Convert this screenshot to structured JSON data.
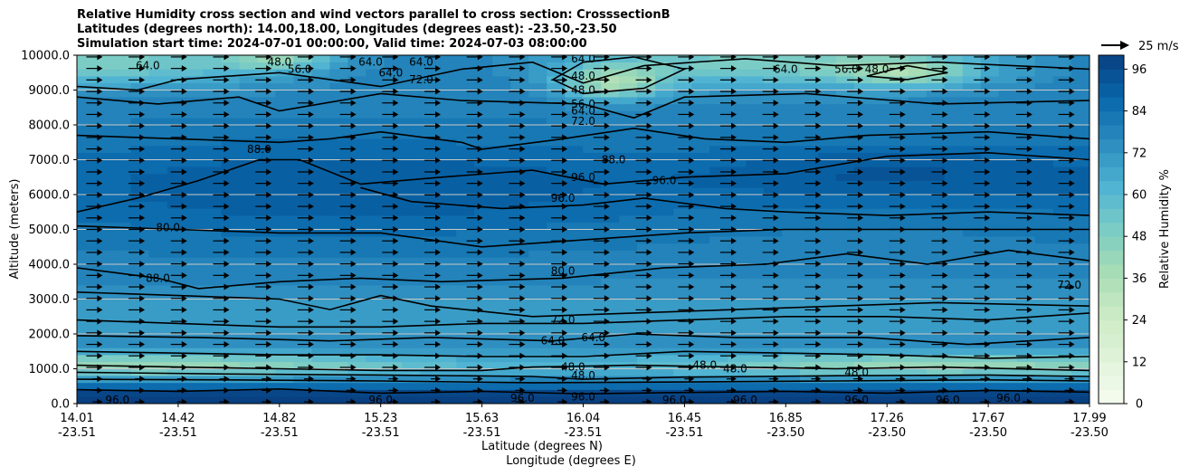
{
  "title_lines": [
    "Relative Humidity cross section and wind vectors parallel to cross section: CrosssectionB",
    "Latitudes (degrees north): 14.00,18.00, Longitudes (degrees east): -23.50,-23.50",
    "Simulation start time: 2024-07-01 00:00:00, Valid time: 2024-07-03 08:00:00"
  ],
  "chart_data": {
    "type": "heatmap",
    "description_free": true,
    "ylabel": "Altitude (meters)",
    "xlabel_lat": "Latitude (degrees N)",
    "xlabel_lon": "Longitude (degrees E)",
    "ylim": [
      0,
      10000
    ],
    "yticks": [
      "0.0",
      "1000.0",
      "2000.0",
      "3000.0",
      "4000.0",
      "5000.0",
      "6000.0",
      "7000.0",
      "8000.0",
      "9000.0",
      "10000.0"
    ],
    "xticks": [
      {
        "lat": "14.01",
        "lon": "-23.51"
      },
      {
        "lat": "14.42",
        "lon": "-23.51"
      },
      {
        "lat": "14.82",
        "lon": "-23.51"
      },
      {
        "lat": "15.23",
        "lon": "-23.51"
      },
      {
        "lat": "15.63",
        "lon": "-23.51"
      },
      {
        "lat": "16.04",
        "lon": "-23.51"
      },
      {
        "lat": "16.45",
        "lon": "-23.51"
      },
      {
        "lat": "16.85",
        "lon": "-23.50"
      },
      {
        "lat": "17.26",
        "lon": "-23.50"
      },
      {
        "lat": "17.67",
        "lon": "-23.50"
      },
      {
        "lat": "17.99",
        "lon": "-23.50"
      }
    ],
    "colorbar": {
      "label": "Relative Humidity %",
      "ticks": [
        "0",
        "12",
        "24",
        "36",
        "48",
        "60",
        "72",
        "84",
        "96"
      ],
      "levels": [
        0,
        4,
        8,
        12,
        16,
        20,
        24,
        28,
        32,
        36,
        40,
        44,
        48,
        52,
        56,
        60,
        64,
        68,
        72,
        76,
        80,
        84,
        88,
        92,
        96,
        100
      ],
      "colormap": "GnBu"
    },
    "wind_key": "25 m/s",
    "contour_labels": [
      {
        "text": "96.0",
        "x": 0.04,
        "y": 100
      },
      {
        "text": "80.0",
        "x": 0.09,
        "y": 5050
      },
      {
        "text": "88.0",
        "x": 0.08,
        "y": 3600
      },
      {
        "text": "88.0",
        "x": 0.18,
        "y": 7300
      },
      {
        "text": "64.0",
        "x": 0.07,
        "y": 9700
      },
      {
        "text": "48.0",
        "x": 0.2,
        "y": 9800
      },
      {
        "text": "56.0",
        "x": 0.22,
        "y": 9600
      },
      {
        "text": "64.0",
        "x": 0.29,
        "y": 9800
      },
      {
        "text": "64.0",
        "x": 0.31,
        "y": 9500
      },
      {
        "text": "64.0",
        "x": 0.34,
        "y": 9800
      },
      {
        "text": "72.0",
        "x": 0.34,
        "y": 9300
      },
      {
        "text": "96.0",
        "x": 0.3,
        "y": 100
      },
      {
        "text": "80.0",
        "x": 0.48,
        "y": 3800
      },
      {
        "text": "72.0",
        "x": 0.48,
        "y": 2400
      },
      {
        "text": "64.0",
        "x": 0.47,
        "y": 1800
      },
      {
        "text": "64.0",
        "x": 0.51,
        "y": 1900
      },
      {
        "text": "48.0",
        "x": 0.49,
        "y": 1050
      },
      {
        "text": "48.0",
        "x": 0.5,
        "y": 800
      },
      {
        "text": "96.0",
        "x": 0.5,
        "y": 200
      },
      {
        "text": "96.0",
        "x": 0.44,
        "y": 150
      },
      {
        "text": "48.0",
        "x": 0.5,
        "y": 9000
      },
      {
        "text": "56.0",
        "x": 0.5,
        "y": 8600
      },
      {
        "text": "64.0",
        "x": 0.5,
        "y": 8400
      },
      {
        "text": "72.0",
        "x": 0.5,
        "y": 8100
      },
      {
        "text": "48.0",
        "x": 0.5,
        "y": 9400
      },
      {
        "text": "64.0",
        "x": 0.5,
        "y": 9900
      },
      {
        "text": "96.0",
        "x": 0.5,
        "y": 6500
      },
      {
        "text": "96.0",
        "x": 0.48,
        "y": 5900
      },
      {
        "text": "88.0",
        "x": 0.53,
        "y": 7000
      },
      {
        "text": "96.0",
        "x": 0.58,
        "y": 6400
      },
      {
        "text": "48.0",
        "x": 0.62,
        "y": 1100
      },
      {
        "text": "48.0",
        "x": 0.65,
        "y": 1000
      },
      {
        "text": "96.0",
        "x": 0.59,
        "y": 100
      },
      {
        "text": "96.0",
        "x": 0.66,
        "y": 100
      },
      {
        "text": "64.0",
        "x": 0.7,
        "y": 9600
      },
      {
        "text": "56.0",
        "x": 0.76,
        "y": 9600
      },
      {
        "text": "48.0",
        "x": 0.79,
        "y": 9600
      },
      {
        "text": "48.0",
        "x": 0.77,
        "y": 900
      },
      {
        "text": "96.0",
        "x": 0.77,
        "y": 100
      },
      {
        "text": "96.0",
        "x": 0.86,
        "y": 100
      },
      {
        "text": "96.0",
        "x": 0.92,
        "y": 150
      },
      {
        "text": "72.0",
        "x": 0.98,
        "y": 3400
      }
    ]
  }
}
